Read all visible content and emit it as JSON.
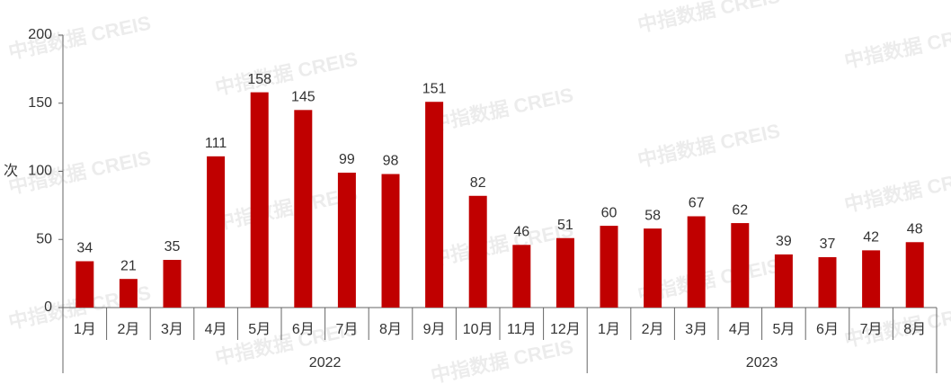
{
  "chart_data": {
    "type": "bar",
    "ylabel": "次",
    "color": "#c00000",
    "ylim": [
      0,
      200
    ],
    "yticks": [
      0,
      50,
      100,
      150,
      200
    ],
    "watermark": "中指数据 CREIS",
    "groups": [
      {
        "label": "2022",
        "categories": [
          "1月",
          "2月",
          "3月",
          "4月",
          "5月",
          "6月",
          "7月",
          "8月",
          "9月",
          "10月",
          "11月",
          "12月"
        ],
        "values": [
          34,
          21,
          35,
          111,
          158,
          145,
          99,
          98,
          151,
          82,
          46,
          51
        ]
      },
      {
        "label": "2023",
        "categories": [
          "1月",
          "2月",
          "3月",
          "4月",
          "5月",
          "6月",
          "7月",
          "8月"
        ],
        "values": [
          60,
          58,
          67,
          62,
          39,
          37,
          42,
          48
        ]
      }
    ]
  }
}
